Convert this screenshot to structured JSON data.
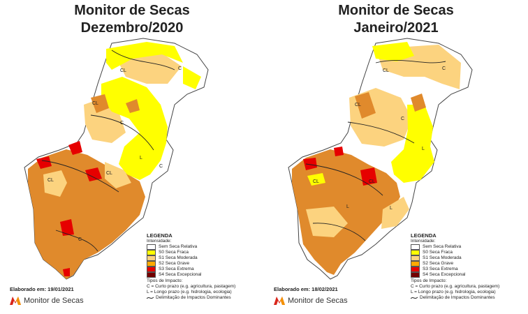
{
  "colors": {
    "none": "#ffffff",
    "s0": "#ffff00",
    "s1": "#fcd37f",
    "s2": "#ffaa00",
    "s2_render": "#e08a2c",
    "s3": "#e60000",
    "s4": "#730000",
    "brand_red": "#d9261c",
    "brand_orange": "#f39200"
  },
  "panels": [
    {
      "title_line1": "Monitor de Secas",
      "title_line2": "Dezembro/2020",
      "elaborated": "Elaborado em: 19/01/2021",
      "impact_labels": [
        "CL",
        "CL",
        "C",
        "C",
        "C",
        "L",
        "CL",
        "CL",
        "C"
      ]
    },
    {
      "title_line1": "Monitor de Secas",
      "title_line2": "Janeiro/2021",
      "elaborated": "Elaborado em: 18/02/2021",
      "impact_labels": [
        "CL",
        "CL",
        "C",
        "C",
        "CL",
        "CL",
        "L",
        "L",
        "L"
      ]
    }
  ],
  "legend": {
    "title": "LEGENDA",
    "intensity_label": "Intensidade:",
    "items": [
      {
        "label": "Sem Seca Relativa",
        "key": "none"
      },
      {
        "label": "S0 Seca Fraca",
        "key": "s0"
      },
      {
        "label": "S1 Seca Moderada",
        "key": "s1"
      },
      {
        "label": "S2 Seca Grave",
        "key": "s2"
      },
      {
        "label": "S3 Seca Extrema",
        "key": "s3"
      },
      {
        "label": "S4 Seca Excepcional",
        "key": "s4"
      }
    ],
    "impact_title": "Tipos de Impacto:",
    "impact_c": "C = Curto prazo (e.g. agricultura, pastagem)",
    "impact_l": "L = Longo prazo (e.g. hidrologia, ecologia)",
    "impact_line": "Delimitação de Impactos Dominantes"
  },
  "brand": {
    "name": "Monitor de Secas"
  }
}
